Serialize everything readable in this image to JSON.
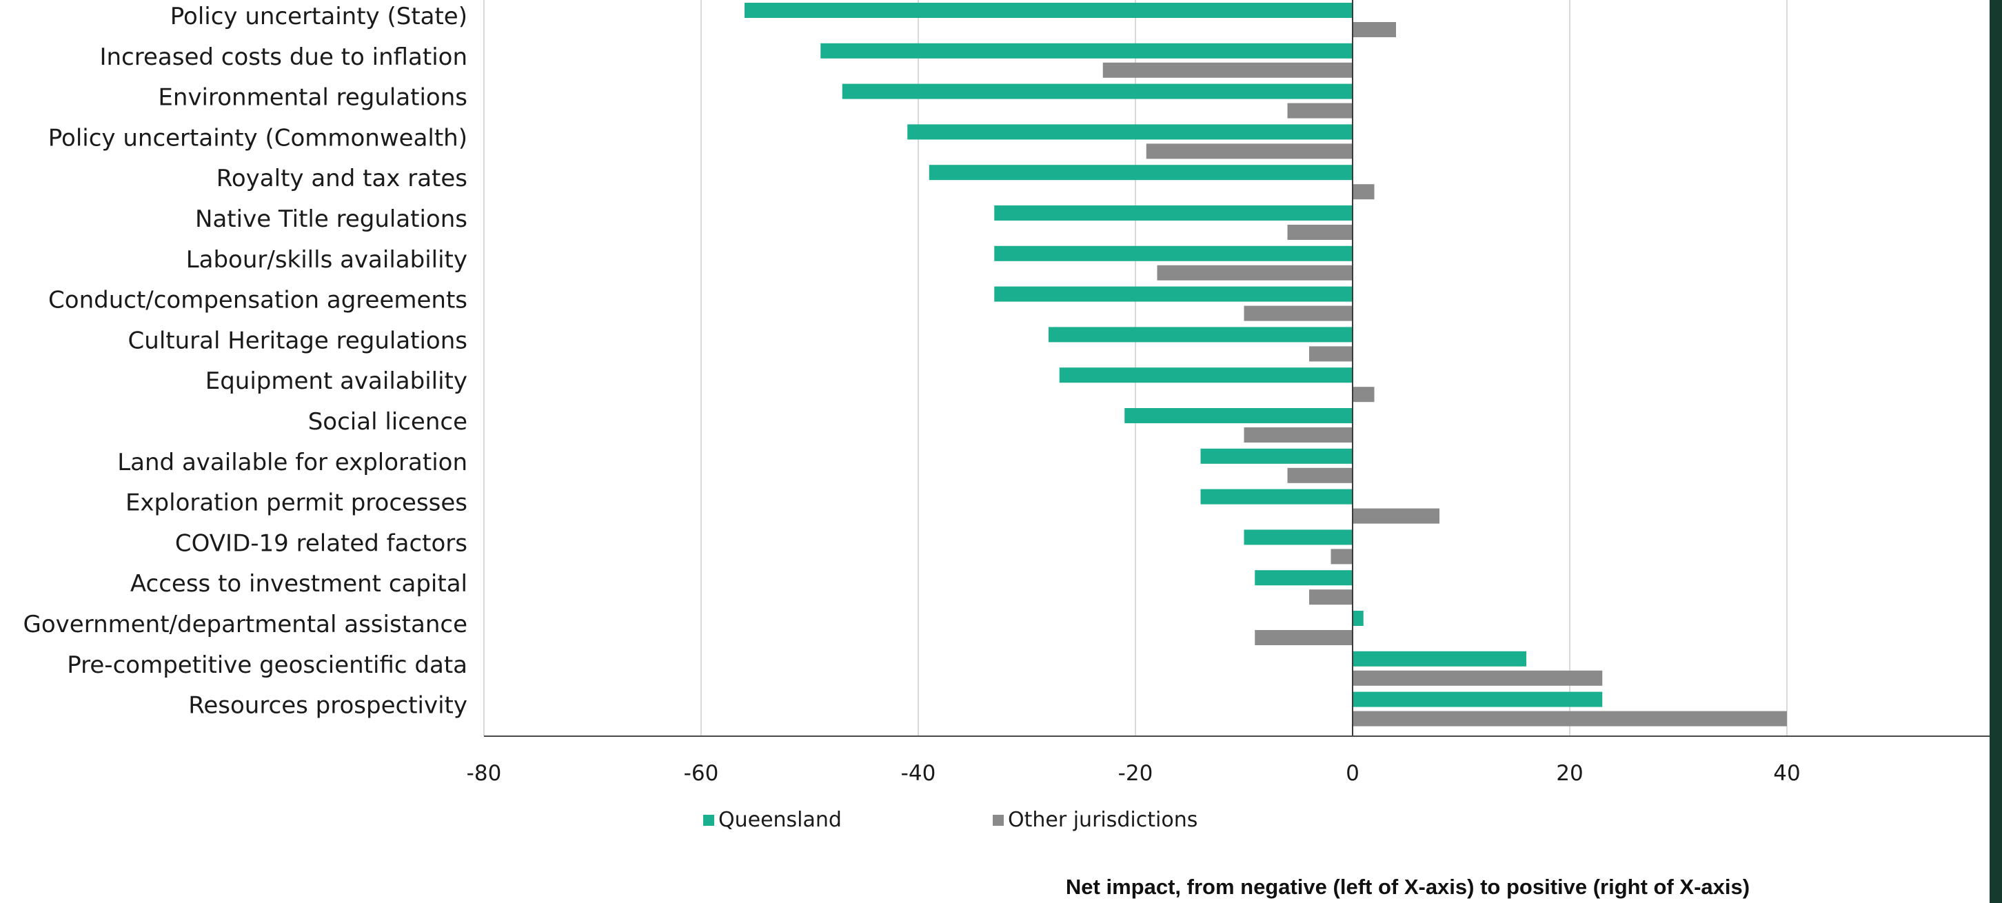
{
  "chart_data": {
    "type": "bar",
    "orientation": "horizontal",
    "categories": [
      "Policy uncertainty (State)",
      "Increased costs due to inflation",
      "Environmental regulations",
      "Policy uncertainty (Commonwealth)",
      "Royalty and tax rates",
      "Native Title regulations",
      "Labour/skills availability",
      "Conduct/compensation agreements",
      "Cultural Heritage regulations",
      "Equipment availability",
      "Social licence",
      "Land available for exploration",
      "Exploration permit processes",
      "COVID-19 related factors",
      "Access to investment capital",
      "Government/departmental assistance",
      "Pre-competitive geoscientific data",
      "Resources prospectivity"
    ],
    "series": [
      {
        "name": "Queensland",
        "color": "#1aaf8e",
        "values": [
          -56,
          -49,
          -47,
          -41,
          -39,
          -33,
          -33,
          -33,
          -28,
          -27,
          -21,
          -14,
          -14,
          -10,
          -9,
          1,
          16,
          23
        ]
      },
      {
        "name": "Other jurisdictions",
        "color": "#8a8a8a",
        "values": [
          4,
          -23,
          -6,
          -19,
          2,
          -6,
          -18,
          -10,
          -4,
          2,
          -10,
          -6,
          8,
          -2,
          -4,
          -9,
          23,
          40
        ]
      }
    ],
    "xlim": [
      -80,
      58
    ],
    "xticks": [
      -80,
      -60,
      -40,
      -20,
      0,
      20,
      40
    ],
    "xlabel": "Net impact, from negative (left of X-axis) to positive (right of X-axis)",
    "grid": "vertical",
    "legend_position": "bottom"
  }
}
